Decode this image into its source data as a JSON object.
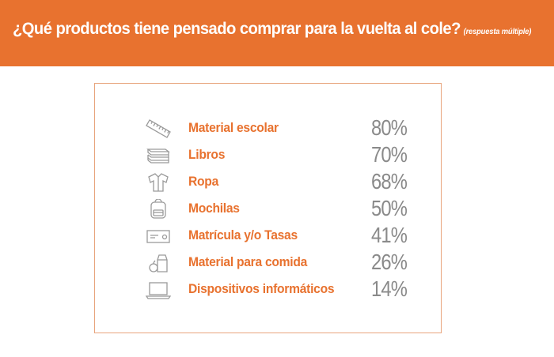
{
  "header": {
    "title": "¿Qué productos tiene pensado comprar para la vuelta al cole?",
    "note": "(respuesta múltiple)"
  },
  "chart_data": {
    "type": "table",
    "title": "¿Qué productos tiene pensado comprar para la vuelta al cole?",
    "subtitle": "(respuesta múltiple)",
    "categories": [
      "Material escolar",
      "Libros",
      "Ropa",
      "Mochilas",
      "Matrícula y/o Tasas",
      "Material para comida",
      "Dispositivos informáticos"
    ],
    "values": [
      80,
      70,
      68,
      50,
      41,
      26,
      14
    ],
    "value_labels": [
      "80%",
      "70%",
      "68%",
      "50%",
      "41%",
      "26%",
      "14%"
    ],
    "icons": [
      "ruler-icon",
      "books-icon",
      "shirt-icon",
      "backpack-icon",
      "ticket-icon",
      "lunch-icon",
      "laptop-icon"
    ],
    "colors": {
      "accent": "#e8722f",
      "value": "#8a8a8a",
      "icon": "#9a9a9a"
    }
  }
}
